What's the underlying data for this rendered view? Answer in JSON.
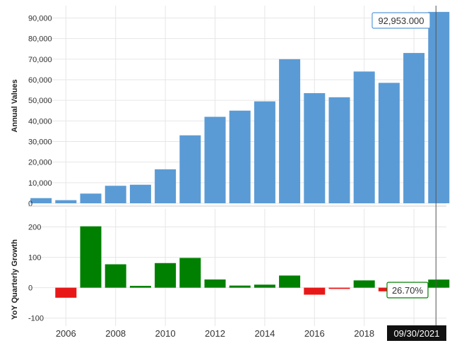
{
  "chart_data": [
    {
      "type": "bar",
      "ylabel": "Annual Values",
      "categories": [
        "2005",
        "2006",
        "2007",
        "2008",
        "2009",
        "2010",
        "2011",
        "2012",
        "2013",
        "2014",
        "2015",
        "2016",
        "2017",
        "2018",
        "2019",
        "2020",
        "2021"
      ],
      "values": [
        2500,
        1500,
        4700,
        8500,
        9000,
        16500,
        33000,
        42000,
        45000,
        49500,
        70000,
        53500,
        51500,
        64000,
        58500,
        73000,
        92953
      ],
      "ylim": [
        0,
        96000
      ],
      "yticks": [
        0,
        10000,
        20000,
        30000,
        40000,
        50000,
        60000,
        70000,
        80000,
        90000
      ],
      "ytick_labels": [
        "0",
        "10,000",
        "20,000",
        "30,000",
        "40,000",
        "50,000",
        "60,000",
        "70,000",
        "80,000",
        "90,000"
      ],
      "color": "#5b9bd5",
      "grid": true,
      "callout": "92,953.000"
    },
    {
      "type": "bar",
      "ylabel": "YoY Quarterly Growth",
      "categories": [
        "2006",
        "2007",
        "2008",
        "2009",
        "2010",
        "2011",
        "2012",
        "2013",
        "2014",
        "2015",
        "2016",
        "2017",
        "2018",
        "2019",
        "2021"
      ],
      "values": [
        -33,
        202,
        77,
        6,
        81,
        98,
        27,
        7,
        10,
        40,
        -23,
        -4,
        24,
        -12,
        26.7
      ],
      "ylim": [
        -110,
        250
      ],
      "yticks": [
        -100,
        0,
        100,
        200
      ],
      "ytick_labels": [
        "-100",
        "0",
        "100",
        "200"
      ],
      "positive_color": "#008000",
      "negative_color": "#e81818",
      "grid": true,
      "callout": "26.70%",
      "xtick_labels": [
        "2006",
        "2008",
        "2010",
        "2012",
        "2014",
        "2016",
        "2018"
      ],
      "date_label": "09/30/2021"
    }
  ]
}
